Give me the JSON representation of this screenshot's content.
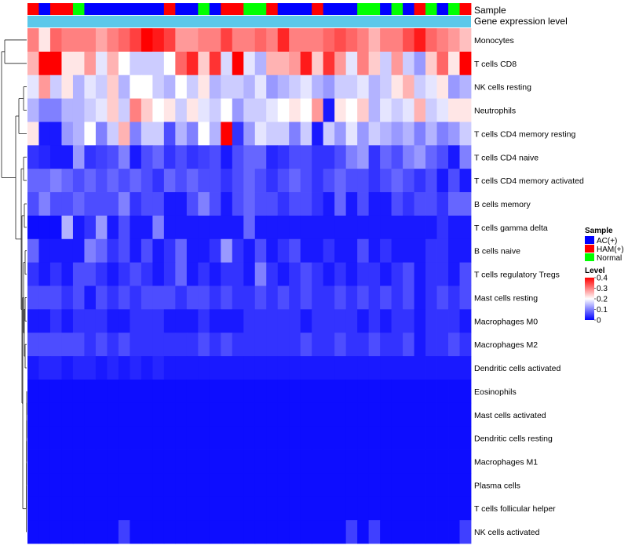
{
  "chart_data": {
    "type": "heatmap",
    "annotation_labels": {
      "sample": "Sample",
      "gene_expression": "Gene expression level"
    },
    "rows": [
      "Monocytes",
      "T cells CD8",
      "NK cells resting",
      "Neutrophils",
      "T cells CD4 memory resting",
      "T cells CD4 naive",
      "T cells CD4 memory activated",
      "B cells memory",
      "T cells gamma delta",
      "B cells naive",
      "T cells regulatory  Tregs",
      "Mast cells resting",
      "Macrophages M0",
      "Macrophages M2",
      "Dendritic cells activated",
      "Eosinophils",
      "Mast cells activated",
      "Dendritic cells resting",
      "Macrophages M1",
      "Plasma cells",
      "T cells follicular helper",
      "NK cells activated"
    ],
    "sample_groups": [
      "HAM(+)",
      "AC(+)",
      "HAM(+)",
      "HAM(+)",
      "Normal",
      "AC(+)",
      "AC(+)",
      "AC(+)",
      "AC(+)",
      "AC(+)",
      "AC(+)",
      "AC(+)",
      "HAM(+)",
      "AC(+)",
      "AC(+)",
      "Normal",
      "AC(+)",
      "HAM(+)",
      "HAM(+)",
      "Normal",
      "Normal",
      "HAM(+)",
      "AC(+)",
      "AC(+)",
      "AC(+)",
      "HAM(+)",
      "AC(+)",
      "AC(+)",
      "AC(+)",
      "Normal",
      "Normal",
      "AC(+)",
      "Normal",
      "AC(+)",
      "HAM(+)",
      "Normal",
      "AC(+)",
      "Normal",
      "HAM(+)"
    ],
    "values": [
      [
        0.3,
        0.22,
        0.32,
        0.3,
        0.3,
        0.3,
        0.27,
        0.3,
        0.32,
        0.35,
        0.4,
        0.38,
        0.35,
        0.28,
        0.28,
        0.3,
        0.3,
        0.35,
        0.3,
        0.3,
        0.32,
        0.3,
        0.37,
        0.3,
        0.3,
        0.3,
        0.32,
        0.34,
        0.32,
        0.3,
        0.26,
        0.3,
        0.3,
        0.34,
        0.38,
        0.32,
        0.3,
        0.28,
        0.25
      ],
      [
        0.26,
        0.4,
        0.4,
        0.22,
        0.22,
        0.28,
        0.18,
        0.26,
        0.2,
        0.16,
        0.16,
        0.16,
        0.2,
        0.32,
        0.37,
        0.24,
        0.36,
        0.17,
        0.4,
        0.18,
        0.14,
        0.26,
        0.26,
        0.28,
        0.38,
        0.24,
        0.36,
        0.28,
        0.18,
        0.3,
        0.24,
        0.16,
        0.28,
        0.16,
        0.12,
        0.24,
        0.32,
        0.22,
        0.4
      ],
      [
        0.18,
        0.28,
        0.16,
        0.22,
        0.14,
        0.18,
        0.16,
        0.24,
        0.14,
        0.2,
        0.2,
        0.16,
        0.14,
        0.2,
        0.16,
        0.22,
        0.14,
        0.16,
        0.16,
        0.14,
        0.18,
        0.12,
        0.14,
        0.16,
        0.18,
        0.14,
        0.12,
        0.16,
        0.16,
        0.18,
        0.14,
        0.16,
        0.22,
        0.26,
        0.16,
        0.18,
        0.22,
        0.12,
        0.14
      ],
      [
        0.14,
        0.1,
        0.1,
        0.14,
        0.14,
        0.16,
        0.18,
        0.24,
        0.16,
        0.3,
        0.24,
        0.2,
        0.22,
        0.16,
        0.22,
        0.18,
        0.16,
        0.2,
        0.12,
        0.16,
        0.16,
        0.18,
        0.2,
        0.22,
        0.2,
        0.28,
        0.02,
        0.22,
        0.2,
        0.24,
        0.14,
        0.18,
        0.16,
        0.18,
        0.26,
        0.16,
        0.18,
        0.22,
        0.22
      ],
      [
        0.22,
        0.02,
        0.02,
        0.12,
        0.14,
        0.2,
        0.1,
        0.16,
        0.26,
        0.1,
        0.16,
        0.16,
        0.06,
        0.14,
        0.1,
        0.2,
        0.14,
        0.4,
        0.04,
        0.12,
        0.18,
        0.16,
        0.16,
        0.1,
        0.16,
        0.02,
        0.16,
        0.12,
        0.18,
        0.12,
        0.16,
        0.14,
        0.12,
        0.14,
        0.1,
        0.14,
        0.1,
        0.12,
        0.16
      ],
      [
        0.04,
        0.03,
        0.02,
        0.02,
        0.12,
        0.04,
        0.05,
        0.06,
        0.1,
        0.02,
        0.06,
        0.08,
        0.04,
        0.06,
        0.04,
        0.05,
        0.06,
        0.02,
        0.06,
        0.08,
        0.08,
        0.03,
        0.04,
        0.06,
        0.06,
        0.04,
        0.04,
        0.06,
        0.1,
        0.12,
        0.04,
        0.08,
        0.06,
        0.1,
        0.12,
        0.08,
        0.06,
        0.02,
        0.1
      ],
      [
        0.08,
        0.08,
        0.1,
        0.08,
        0.06,
        0.08,
        0.06,
        0.08,
        0.06,
        0.08,
        0.06,
        0.04,
        0.08,
        0.06,
        0.08,
        0.06,
        0.06,
        0.04,
        0.06,
        0.08,
        0.06,
        0.04,
        0.06,
        0.08,
        0.06,
        0.04,
        0.06,
        0.08,
        0.06,
        0.06,
        0.04,
        0.06,
        0.08,
        0.06,
        0.04,
        0.06,
        0.02,
        0.06,
        0.02
      ],
      [
        0.06,
        0.1,
        0.06,
        0.06,
        0.08,
        0.06,
        0.06,
        0.06,
        0.1,
        0.04,
        0.06,
        0.06,
        0.02,
        0.02,
        0.06,
        0.1,
        0.06,
        0.02,
        0.06,
        0.08,
        0.06,
        0.06,
        0.04,
        0.06,
        0.06,
        0.04,
        0.02,
        0.08,
        0.02,
        0.06,
        0.02,
        0.02,
        0.06,
        0.04,
        0.06,
        0.06,
        0.04,
        0.08,
        0.08
      ],
      [
        0.01,
        0.01,
        0.01,
        0.14,
        0.02,
        0.04,
        0.12,
        0.02,
        0.06,
        0.02,
        0.02,
        0.1,
        0.02,
        0.02,
        0.02,
        0.02,
        0.02,
        0.02,
        0.02,
        0.08,
        0.02,
        0.02,
        0.02,
        0.02,
        0.02,
        0.02,
        0.02,
        0.02,
        0.02,
        0.02,
        0.02,
        0.02,
        0.02,
        0.02,
        0.02,
        0.02,
        0.04,
        0.02,
        0.02
      ],
      [
        0.08,
        0.02,
        0.02,
        0.02,
        0.02,
        0.1,
        0.08,
        0.04,
        0.06,
        0.02,
        0.06,
        0.02,
        0.04,
        0.08,
        0.02,
        0.02,
        0.04,
        0.12,
        0.04,
        0.02,
        0.06,
        0.02,
        0.04,
        0.06,
        0.02,
        0.02,
        0.04,
        0.02,
        0.02,
        0.06,
        0.02,
        0.04,
        0.02,
        0.02,
        0.02,
        0.04,
        0.04,
        0.02,
        0.02
      ],
      [
        0.04,
        0.02,
        0.04,
        0.02,
        0.06,
        0.06,
        0.04,
        0.02,
        0.04,
        0.06,
        0.04,
        0.02,
        0.04,
        0.08,
        0.02,
        0.04,
        0.02,
        0.04,
        0.04,
        0.02,
        0.1,
        0.04,
        0.02,
        0.04,
        0.06,
        0.04,
        0.02,
        0.04,
        0.02,
        0.04,
        0.04,
        0.02,
        0.04,
        0.06,
        0.02,
        0.04,
        0.04,
        0.02,
        0.06
      ],
      [
        0.06,
        0.06,
        0.06,
        0.04,
        0.06,
        0.02,
        0.06,
        0.04,
        0.06,
        0.04,
        0.06,
        0.06,
        0.06,
        0.04,
        0.06,
        0.06,
        0.04,
        0.06,
        0.04,
        0.04,
        0.06,
        0.04,
        0.06,
        0.04,
        0.06,
        0.04,
        0.04,
        0.06,
        0.04,
        0.06,
        0.04,
        0.06,
        0.04,
        0.06,
        0.02,
        0.04,
        0.06,
        0.04,
        0.06
      ],
      [
        0.02,
        0.02,
        0.04,
        0.02,
        0.04,
        0.04,
        0.04,
        0.02,
        0.02,
        0.04,
        0.04,
        0.04,
        0.02,
        0.02,
        0.02,
        0.04,
        0.02,
        0.02,
        0.02,
        0.04,
        0.04,
        0.04,
        0.04,
        0.04,
        0.02,
        0.04,
        0.04,
        0.04,
        0.04,
        0.02,
        0.04,
        0.02,
        0.04,
        0.04,
        0.02,
        0.04,
        0.04,
        0.04,
        0.02
      ],
      [
        0.06,
        0.06,
        0.06,
        0.06,
        0.06,
        0.04,
        0.06,
        0.04,
        0.06,
        0.04,
        0.04,
        0.04,
        0.04,
        0.04,
        0.04,
        0.06,
        0.04,
        0.06,
        0.04,
        0.04,
        0.04,
        0.04,
        0.04,
        0.04,
        0.06,
        0.04,
        0.04,
        0.06,
        0.04,
        0.04,
        0.06,
        0.04,
        0.04,
        0.06,
        0.02,
        0.04,
        0.04,
        0.06,
        0.04
      ],
      [
        0.02,
        0.03,
        0.03,
        0.02,
        0.03,
        0.03,
        0.02,
        0.03,
        0.02,
        0.03,
        0.02,
        0.03,
        0.02,
        0.02,
        0.02,
        0.02,
        0.02,
        0.02,
        0.02,
        0.02,
        0.02,
        0.02,
        0.02,
        0.02,
        0.02,
        0.02,
        0.02,
        0.02,
        0.02,
        0.02,
        0.02,
        0.02,
        0.02,
        0.02,
        0.02,
        0.02,
        0.02,
        0.02,
        0.02
      ],
      [
        0.01,
        0.01,
        0.01,
        0.01,
        0.01,
        0.01,
        0.01,
        0.01,
        0.01,
        0.01,
        0.01,
        0.01,
        0.01,
        0.01,
        0.01,
        0.01,
        0.01,
        0.01,
        0.01,
        0.01,
        0.01,
        0.01,
        0.01,
        0.01,
        0.01,
        0.01,
        0.01,
        0.01,
        0.01,
        0.01,
        0.01,
        0.01,
        0.01,
        0.01,
        0.01,
        0.01,
        0.01,
        0.01,
        0.01
      ],
      [
        0.01,
        0.01,
        0.01,
        0.01,
        0.01,
        0.01,
        0.01,
        0.01,
        0.01,
        0.01,
        0.01,
        0.01,
        0.01,
        0.01,
        0.01,
        0.01,
        0.01,
        0.01,
        0.01,
        0.01,
        0.01,
        0.01,
        0.01,
        0.01,
        0.01,
        0.01,
        0.01,
        0.01,
        0.01,
        0.01,
        0.01,
        0.01,
        0.01,
        0.01,
        0.01,
        0.01,
        0.01,
        0.01,
        0.01
      ],
      [
        0.01,
        0.01,
        0.01,
        0.01,
        0.01,
        0.01,
        0.01,
        0.01,
        0.01,
        0.01,
        0.01,
        0.01,
        0.01,
        0.01,
        0.01,
        0.01,
        0.01,
        0.01,
        0.01,
        0.01,
        0.01,
        0.01,
        0.01,
        0.01,
        0.01,
        0.01,
        0.01,
        0.01,
        0.01,
        0.01,
        0.01,
        0.01,
        0.01,
        0.01,
        0.01,
        0.01,
        0.01,
        0.01,
        0.01
      ],
      [
        0.01,
        0.01,
        0.01,
        0.01,
        0.01,
        0.01,
        0.01,
        0.01,
        0.01,
        0.01,
        0.01,
        0.01,
        0.01,
        0.01,
        0.01,
        0.01,
        0.01,
        0.01,
        0.01,
        0.01,
        0.01,
        0.01,
        0.01,
        0.01,
        0.01,
        0.01,
        0.01,
        0.01,
        0.01,
        0.01,
        0.01,
        0.01,
        0.01,
        0.01,
        0.01,
        0.01,
        0.01,
        0.01,
        0.01
      ],
      [
        0.01,
        0.01,
        0.01,
        0.01,
        0.01,
        0.01,
        0.01,
        0.01,
        0.01,
        0.01,
        0.01,
        0.01,
        0.01,
        0.01,
        0.01,
        0.01,
        0.01,
        0.01,
        0.01,
        0.01,
        0.01,
        0.01,
        0.01,
        0.01,
        0.01,
        0.01,
        0.01,
        0.01,
        0.01,
        0.01,
        0.01,
        0.01,
        0.01,
        0.01,
        0.01,
        0.01,
        0.01,
        0.01,
        0.01
      ],
      [
        0.01,
        0.01,
        0.01,
        0.01,
        0.01,
        0.01,
        0.01,
        0.01,
        0.01,
        0.01,
        0.01,
        0.01,
        0.01,
        0.01,
        0.01,
        0.01,
        0.01,
        0.01,
        0.01,
        0.01,
        0.01,
        0.01,
        0.01,
        0.01,
        0.01,
        0.01,
        0.01,
        0.01,
        0.01,
        0.01,
        0.01,
        0.01,
        0.01,
        0.01,
        0.01,
        0.01,
        0.01,
        0.01,
        0.01
      ],
      [
        0.01,
        0.01,
        0.01,
        0.01,
        0.01,
        0.01,
        0.01,
        0.01,
        0.05,
        0.01,
        0.01,
        0.01,
        0.01,
        0.01,
        0.01,
        0.01,
        0.01,
        0.01,
        0.01,
        0.01,
        0.01,
        0.01,
        0.01,
        0.01,
        0.01,
        0.01,
        0.01,
        0.01,
        0.05,
        0.01,
        0.05,
        0.01,
        0.01,
        0.01,
        0.01,
        0.01,
        0.01,
        0.01,
        0.05
      ]
    ],
    "legend": {
      "sample": {
        "title": "Sample",
        "entries": [
          {
            "name": "AC(+)",
            "color": "#0000ff"
          },
          {
            "name": "HAM(+)",
            "color": "#ff0000"
          },
          {
            "name": "Normal",
            "color": "#00ff00"
          }
        ]
      },
      "level": {
        "title": "Level",
        "ticks": [
          "0.4",
          "0.3",
          "0.2",
          "0.1",
          "0"
        ],
        "range": [
          0,
          0.4
        ],
        "low_color": "#0000ff",
        "mid_color": "#ffffff",
        "high_color": "#ff0000"
      }
    },
    "gene_expression_color": "#5bc8ea"
  }
}
